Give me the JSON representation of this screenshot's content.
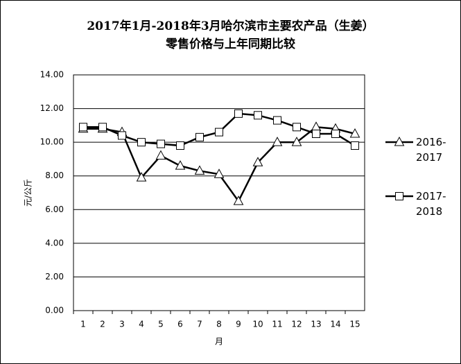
{
  "chart_data": {
    "type": "line",
    "title": [
      "2017年1月-2018年3月哈尔滨市主要农产品（生姜）",
      "零售价格与上年同期比较"
    ],
    "x_label": "月",
    "y_label": "元/公斤",
    "categories": [
      "1",
      "2",
      "3",
      "4",
      "5",
      "6",
      "7",
      "8",
      "9",
      "10",
      "11",
      "12",
      "13",
      "14",
      "15"
    ],
    "series": [
      {
        "name": "2016-2017",
        "color": "#000000",
        "marker": "triangle",
        "values": [
          10.8,
          10.8,
          10.6,
          7.9,
          9.2,
          8.6,
          8.3,
          8.1,
          6.5,
          8.8,
          10.0,
          10.0,
          10.9,
          10.8,
          10.5
        ]
      },
      {
        "name": "2017-2018",
        "color": "#000000",
        "marker": "square",
        "values": [
          10.9,
          10.9,
          10.4,
          10.0,
          9.9,
          9.8,
          10.3,
          10.6,
          11.7,
          11.6,
          11.3,
          10.9,
          10.5,
          10.5,
          9.8
        ]
      }
    ],
    "ylim": [
      0,
      14
    ],
    "yticks": [
      {
        "value": 0,
        "label": "0.00"
      },
      {
        "value": 2,
        "label": "2.00"
      },
      {
        "value": 4,
        "label": "4.00"
      },
      {
        "value": 6,
        "label": "6.00"
      },
      {
        "value": 8,
        "label": "8.00"
      },
      {
        "value": 10,
        "label": "10.00"
      },
      {
        "value": 12,
        "label": "12.00"
      },
      {
        "value": 14,
        "label": "14.00"
      }
    ],
    "grid": true,
    "legend": "right"
  }
}
